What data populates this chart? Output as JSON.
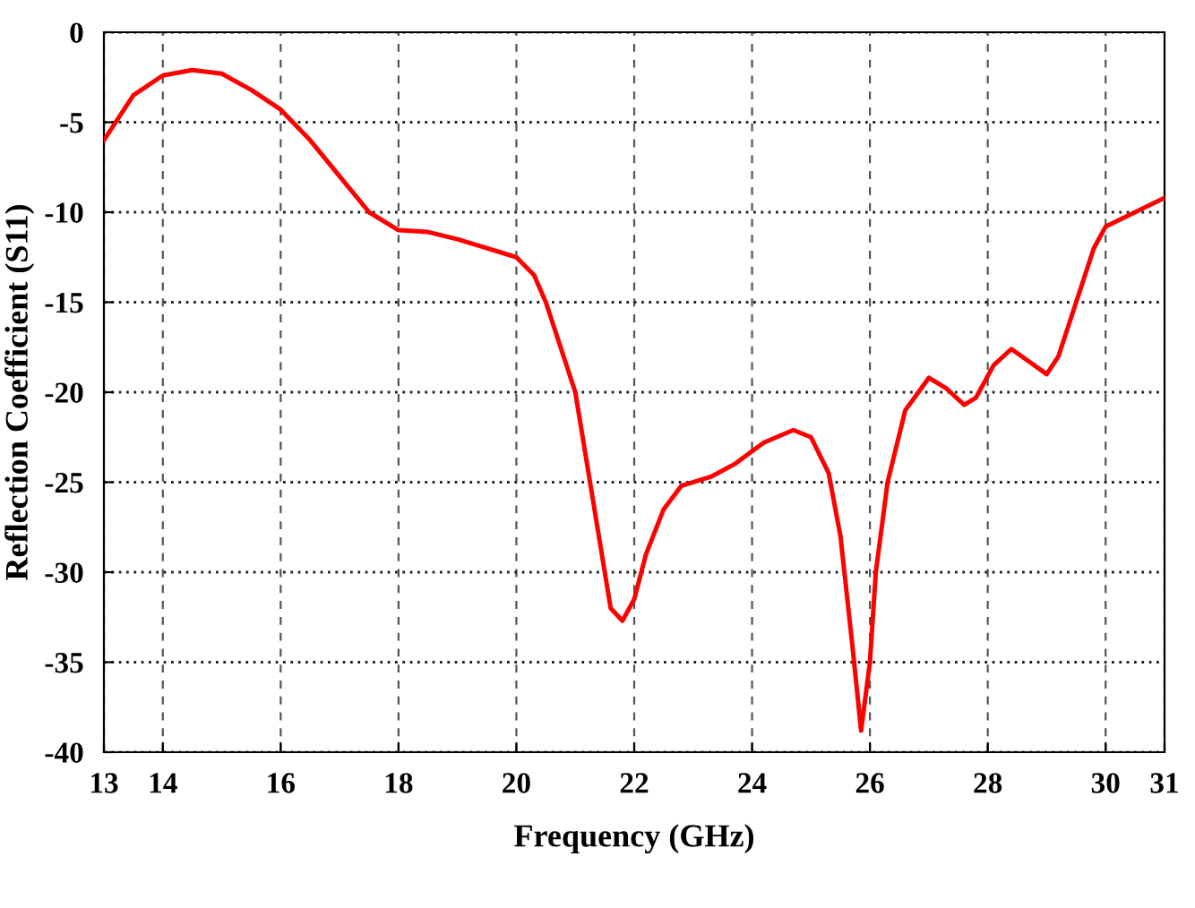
{
  "chart_data": {
    "type": "line",
    "xlabel": "Frequency (GHz)",
    "ylabel": "Reflection Coefficient (S11)",
    "xlim": [
      13,
      31
    ],
    "xticks": [
      13,
      14,
      16,
      18,
      20,
      22,
      24,
      26,
      28,
      30,
      31
    ],
    "ylim": [
      -40,
      0
    ],
    "yticks": [
      -40,
      -35,
      -30,
      -25,
      -20,
      -15,
      -10,
      -5,
      0
    ],
    "grid": true,
    "marker": "none",
    "line_style": "solid",
    "series": [
      {
        "color": "#ff0000",
        "x": [
          13,
          13.5,
          14,
          14.5,
          15,
          15.5,
          16,
          16.5,
          17,
          17.5,
          18,
          18.5,
          19,
          19.5,
          20,
          20.3,
          20.5,
          20.8,
          21,
          21.2,
          21.4,
          21.6,
          21.8,
          22,
          22.2,
          22.5,
          22.8,
          23.3,
          23.7,
          24.2,
          24.7,
          25,
          25.3,
          25.5,
          25.7,
          25.85,
          26,
          26.1,
          26.3,
          26.6,
          27,
          27.3,
          27.6,
          27.8,
          28.1,
          28.4,
          28.7,
          29,
          29.2,
          29.5,
          29.8,
          30,
          30.5,
          31
        ],
        "values": [
          -6,
          -3.5,
          -2.4,
          -2.1,
          -2.3,
          -3.2,
          -4.3,
          -6,
          -8,
          -10,
          -11,
          -11.1,
          -11.5,
          -12,
          -12.5,
          -13.5,
          -15,
          -18,
          -20,
          -24,
          -28,
          -32,
          -32.7,
          -31.5,
          -29,
          -26.5,
          -25.2,
          -24.7,
          -24,
          -22.8,
          -22.1,
          -22.5,
          -24.5,
          -28,
          -34,
          -38.8,
          -35,
          -30,
          -25,
          -21,
          -19.2,
          -19.8,
          -20.7,
          -20.3,
          -18.5,
          -17.6,
          -18.3,
          -19,
          -18,
          -15,
          -12,
          -10.8,
          -10,
          -9.2
        ]
      }
    ]
  }
}
